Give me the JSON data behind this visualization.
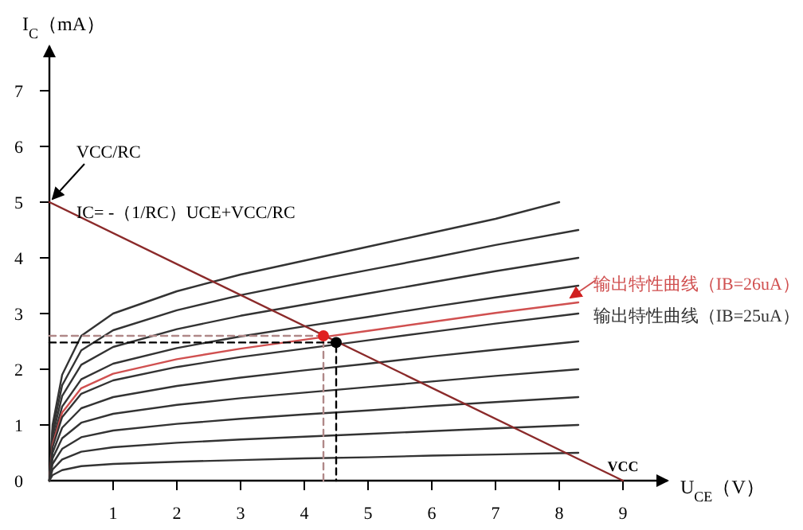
{
  "chart_data": {
    "type": "line",
    "xlabel": "U$_{CE}$（V）",
    "ylabel": "I$_{C}$（mA）",
    "xlim": [
      0,
      9.7
    ],
    "ylim": [
      0,
      7.8
    ],
    "xticks": [
      1,
      2,
      3,
      4,
      5,
      6,
      7,
      8,
      9
    ],
    "yticks": [
      0,
      1,
      2,
      3,
      4,
      5,
      6,
      7
    ],
    "marker": "none",
    "annotations": [
      {
        "text": "VCC/RC",
        "x": 0,
        "y": 5
      },
      "IC= -（1/RC）UCE+VCC/RC",
      {
        "text": "VCC",
        "x": 9,
        "y": 0
      }
    ],
    "series": [
      {
        "color": "#333333",
        "x": [
          0,
          0.05,
          0.2,
          0.5,
          1,
          2,
          3,
          4,
          5,
          6,
          7,
          8
        ],
        "values": [
          0,
          1.0,
          1.9,
          2.6,
          3.0,
          3.4,
          3.7,
          3.95,
          4.2,
          4.45,
          4.7,
          5.0
        ]
      },
      {
        "color": "#333333",
        "x": [
          0,
          0.05,
          0.2,
          0.5,
          1,
          2,
          3,
          4,
          5,
          6,
          7,
          8.3
        ],
        "values": [
          0,
          0.9,
          1.71,
          2.34,
          2.7,
          3.06,
          3.33,
          3.56,
          3.78,
          4.0,
          4.23,
          4.5
        ]
      },
      {
        "color": "#333333",
        "x": [
          0,
          0.05,
          0.2,
          0.5,
          1,
          2,
          3,
          4,
          5,
          6,
          7,
          8.3
        ],
        "values": [
          0,
          0.8,
          1.52,
          2.08,
          2.4,
          2.72,
          2.96,
          3.16,
          3.36,
          3.56,
          3.76,
          4.0
        ]
      },
      {
        "color": "#333333",
        "x": [
          0,
          0.05,
          0.2,
          0.5,
          1,
          2,
          3,
          4,
          5,
          6,
          7,
          8.3
        ],
        "values": [
          0,
          0.7,
          1.33,
          1.82,
          2.1,
          2.38,
          2.59,
          2.77,
          2.94,
          3.12,
          3.29,
          3.5
        ]
      },
      {
        "name": "输出特性曲线（IB=26uA）",
        "color": "#d05050",
        "x": [
          0,
          0.05,
          0.2,
          0.5,
          1,
          2,
          3,
          4,
          5,
          6,
          7,
          8.3
        ],
        "values": [
          0,
          0.64,
          1.22,
          1.66,
          1.92,
          2.18,
          2.37,
          2.53,
          2.69,
          2.85,
          3.01,
          3.2
        ]
      },
      {
        "name": "输出特性曲线（IB=25uA）",
        "color": "#333333",
        "x": [
          0,
          0.05,
          0.2,
          0.5,
          1,
          2,
          3,
          4,
          5,
          6,
          7,
          8.3
        ],
        "values": [
          0,
          0.6,
          1.14,
          1.56,
          1.8,
          2.04,
          2.22,
          2.37,
          2.52,
          2.67,
          2.82,
          3.0
        ]
      },
      {
        "color": "#333333",
        "x": [
          0,
          0.05,
          0.2,
          0.5,
          1,
          2,
          3,
          4,
          5,
          6,
          7,
          8.3
        ],
        "values": [
          0,
          0.5,
          0.95,
          1.3,
          1.5,
          1.7,
          1.85,
          1.98,
          2.1,
          2.23,
          2.35,
          2.5
        ]
      },
      {
        "color": "#333333",
        "x": [
          0,
          0.05,
          0.2,
          0.5,
          1,
          2,
          3,
          4,
          5,
          6,
          7,
          8.3
        ],
        "values": [
          0,
          0.4,
          0.76,
          1.04,
          1.2,
          1.36,
          1.48,
          1.58,
          1.68,
          1.78,
          1.88,
          2.0
        ]
      },
      {
        "color": "#333333",
        "x": [
          0,
          0.05,
          0.2,
          0.5,
          1,
          2,
          3,
          4,
          5,
          6,
          7,
          8.3
        ],
        "values": [
          0,
          0.3,
          0.57,
          0.78,
          0.9,
          1.02,
          1.11,
          1.19,
          1.26,
          1.34,
          1.41,
          1.5
        ]
      },
      {
        "color": "#333333",
        "x": [
          0,
          0.05,
          0.2,
          0.5,
          1,
          2,
          3,
          4,
          5,
          6,
          7,
          8.3
        ],
        "values": [
          0,
          0.2,
          0.38,
          0.52,
          0.6,
          0.68,
          0.74,
          0.79,
          0.84,
          0.89,
          0.94,
          1.0
        ]
      },
      {
        "color": "#333333",
        "x": [
          0,
          0.05,
          0.2,
          0.5,
          1,
          2,
          3,
          4,
          5,
          6,
          7,
          8.3
        ],
        "values": [
          0,
          0.1,
          0.19,
          0.26,
          0.3,
          0.34,
          0.37,
          0.4,
          0.42,
          0.45,
          0.47,
          0.5
        ]
      },
      {
        "color": "#8b2a2a",
        "x": [
          0,
          9
        ],
        "values": [
          5,
          0
        ]
      },
      {
        "color": "#b08888",
        "line_style": "dashed",
        "x": [
          0,
          4.3,
          4.3
        ],
        "values": [
          2.6,
          2.6,
          0
        ]
      },
      {
        "color": "#000000",
        "line_style": "dashed",
        "x": [
          0,
          4.5,
          4.5
        ],
        "values": [
          2.48,
          2.48,
          0
        ]
      },
      {
        "type": "scatter",
        "marker": "circle",
        "color": "#e02020",
        "x": [
          4.3
        ],
        "values": [
          2.6
        ]
      },
      {
        "type": "scatter",
        "marker": "circle",
        "color": "#000000",
        "x": [
          4.5
        ],
        "values": [
          2.48
        ]
      }
    ]
  }
}
